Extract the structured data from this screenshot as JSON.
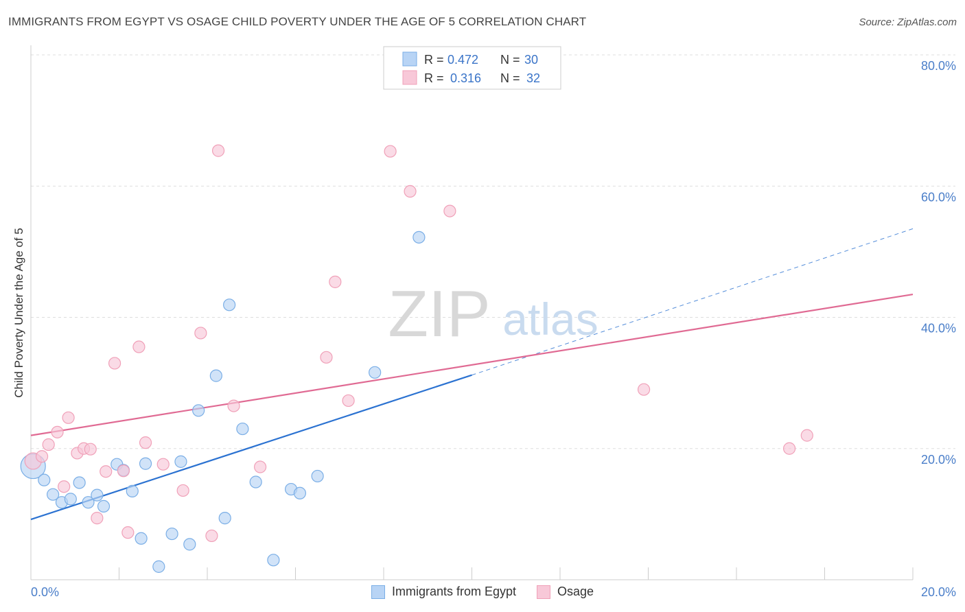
{
  "title": "IMMIGRANTS FROM EGYPT VS OSAGE CHILD POVERTY UNDER THE AGE OF 5 CORRELATION CHART",
  "source": "Source: ZipAtlas.com",
  "watermark": {
    "zip": "ZIP",
    "atlas": "atlas"
  },
  "colors": {
    "blue": "#7aaee6",
    "blue_fill": "#b8d4f5",
    "blue_line": "#2b72d1",
    "pink": "#f0a0b8",
    "pink_fill": "#f8c8d8",
    "pink_line": "#e06a93",
    "axis_text": "#4a7ec9",
    "grid": "#dddddd"
  },
  "legend_top": {
    "rows": [
      {
        "r_label": "R =",
        "r_value": "0.472",
        "n_label": "N =",
        "n_value": "30"
      },
      {
        "r_label": "R =",
        "r_value": "0.316",
        "n_label": "N =",
        "n_value": "32"
      }
    ]
  },
  "legend_bottom": {
    "items": [
      {
        "label": "Immigrants from Egypt"
      },
      {
        "label": "Osage"
      }
    ]
  },
  "chart_data": {
    "type": "scatter",
    "xlabel": "",
    "ylabel": "Child Poverty Under the Age of 5",
    "xlim": [
      0,
      20
    ],
    "ylim": [
      0,
      80
    ],
    "x_tick_labels": [
      "0.0%",
      "20.0%"
    ],
    "y_tick_labels": [
      "20.0%",
      "40.0%",
      "60.0%",
      "80.0%"
    ],
    "y_ticks": [
      20,
      40,
      60,
      80
    ],
    "grid": "horizontal dashed",
    "series": [
      {
        "name": "Immigrants from Egypt",
        "points": [
          [
            0.05,
            17.3
          ],
          [
            0.3,
            15.2
          ],
          [
            0.5,
            13.0
          ],
          [
            0.7,
            11.8
          ],
          [
            0.9,
            12.3
          ],
          [
            1.1,
            14.8
          ],
          [
            1.3,
            11.8
          ],
          [
            1.5,
            12.9
          ],
          [
            1.65,
            11.2
          ],
          [
            1.95,
            17.6
          ],
          [
            2.1,
            16.7
          ],
          [
            2.3,
            13.5
          ],
          [
            2.5,
            6.3
          ],
          [
            2.6,
            17.7
          ],
          [
            2.9,
            2.0
          ],
          [
            3.2,
            7.0
          ],
          [
            3.4,
            18.0
          ],
          [
            3.6,
            5.4
          ],
          [
            3.8,
            25.8
          ],
          [
            4.2,
            31.1
          ],
          [
            4.4,
            9.4
          ],
          [
            4.5,
            41.9
          ],
          [
            4.8,
            23.0
          ],
          [
            5.1,
            14.9
          ],
          [
            5.5,
            3.0
          ],
          [
            5.9,
            13.8
          ],
          [
            6.1,
            13.2
          ],
          [
            6.5,
            15.8
          ],
          [
            7.8,
            31.6
          ],
          [
            8.8,
            52.2
          ]
        ]
      },
      {
        "name": "Osage",
        "points": [
          [
            0.05,
            18.1
          ],
          [
            0.25,
            18.8
          ],
          [
            0.4,
            20.6
          ],
          [
            0.6,
            22.5
          ],
          [
            0.75,
            14.2
          ],
          [
            0.85,
            24.7
          ],
          [
            1.05,
            19.3
          ],
          [
            1.2,
            20.0
          ],
          [
            1.35,
            19.9
          ],
          [
            1.5,
            9.4
          ],
          [
            1.7,
            16.5
          ],
          [
            1.9,
            33.0
          ],
          [
            2.1,
            16.6
          ],
          [
            2.2,
            7.2
          ],
          [
            2.45,
            35.5
          ],
          [
            2.6,
            20.9
          ],
          [
            3.0,
            17.6
          ],
          [
            3.45,
            13.6
          ],
          [
            3.85,
            37.6
          ],
          [
            4.1,
            6.7
          ],
          [
            4.25,
            65.4
          ],
          [
            4.6,
            26.5
          ],
          [
            5.2,
            17.2
          ],
          [
            6.7,
            33.9
          ],
          [
            6.9,
            45.4
          ],
          [
            7.2,
            27.3
          ],
          [
            8.15,
            65.3
          ],
          [
            8.6,
            59.2
          ],
          [
            9.5,
            56.2
          ],
          [
            13.9,
            29.0
          ],
          [
            17.2,
            20.0
          ],
          [
            17.6,
            22.0
          ]
        ]
      }
    ],
    "trendlines": [
      {
        "series": "Immigrants from Egypt",
        "solid_from": [
          0,
          9.2
        ],
        "solid_to": [
          10,
          31.2
        ],
        "dashed_to": [
          20,
          53.5
        ]
      },
      {
        "series": "Osage",
        "solid_from": [
          0,
          22.0
        ],
        "solid_to": [
          20,
          43.5
        ]
      }
    ]
  }
}
